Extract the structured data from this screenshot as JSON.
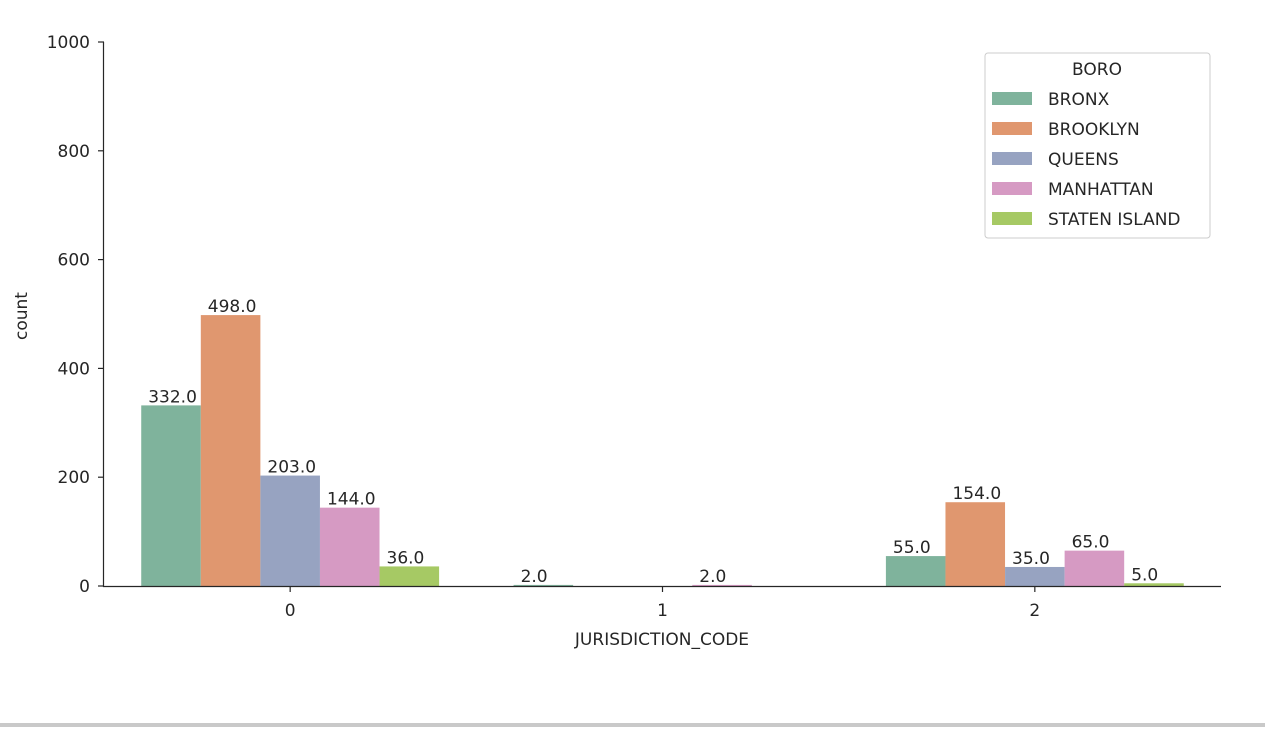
{
  "chart_data": {
    "type": "bar",
    "xlabel": "JURISDICTION_CODE",
    "ylabel": "count",
    "categories": [
      "0",
      "1",
      "2"
    ],
    "ylim": [
      0,
      1000
    ],
    "yticks": [
      "0",
      "200",
      "400",
      "600",
      "800",
      "1000"
    ],
    "grid": false,
    "legend": {
      "title": "BORO",
      "placement": "top-right"
    },
    "series": [
      {
        "name": "BRONX",
        "color": "#7fb39c",
        "values": [
          332,
          2,
          55
        ],
        "labels": [
          "332.0",
          "2.0",
          "55.0"
        ]
      },
      {
        "name": "BROOKLYN",
        "color": "#e0976f",
        "values": [
          498,
          null,
          154
        ],
        "labels": [
          "498.0",
          "",
          "154.0"
        ]
      },
      {
        "name": "QUEENS",
        "color": "#97a3c1",
        "values": [
          203,
          null,
          35
        ],
        "labels": [
          "203.0",
          "",
          "35.0"
        ]
      },
      {
        "name": "MANHATTAN",
        "color": "#d69ac3",
        "values": [
          144,
          2,
          65
        ],
        "labels": [
          "144.0",
          "2.0",
          "65.0"
        ]
      },
      {
        "name": "STATEN ISLAND",
        "color": "#a6c964",
        "values": [
          36,
          null,
          5
        ],
        "labels": [
          "36.0",
          "",
          "5.0"
        ]
      }
    ]
  }
}
